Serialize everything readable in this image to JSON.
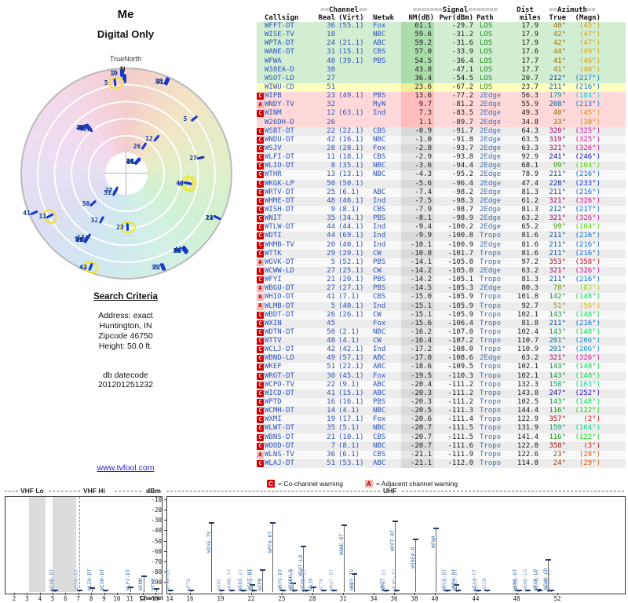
{
  "header": {
    "title": "Me",
    "subtitle": "Digital Only",
    "compass": "TrueNorth",
    "north": "N"
  },
  "search": {
    "heading": "Search Criteria",
    "lines": [
      "Address: exact",
      "Huntington, IN",
      "Zipcode 46750",
      "Height: 50.0 ft."
    ],
    "datecode_label": "db datecode",
    "datecode": "201201251232",
    "link": "www.tvfool.com"
  },
  "table": {
    "groups": {
      "channel_deco": "==",
      "channel": "Channel",
      "signal_deco": "=======",
      "signal": "Signal",
      "dist": "Dist",
      "azimuth_deco": "==",
      "azimuth": "Azimuth"
    },
    "cols": {
      "callsign": "Callsign",
      "real": "Real",
      "virt": "(Virt)",
      "netwk": "Netwk",
      "nm": "NM(dB)",
      "pwr": "Pwr(dBm)",
      "path": "Path",
      "miles": "miles",
      "true": "True",
      "magn": "(Magn)"
    }
  },
  "legend": {
    "c": "C",
    "c_text": "= Co-channel warning",
    "a": "A",
    "a_text": "= Adjacent channel warning"
  },
  "bands": {
    "vhf_lo": "VHF Lo",
    "vhf_hi": "VHF Hi",
    "uhf": "UHF",
    "dbm": "dBm",
    "channel": "Channel"
  },
  "colors": {
    "callsign_blue": "#2a52be",
    "path_los": "#168a16",
    "path_other": "#3f6fb5",
    "warning_c": "#d40000",
    "warning_a": "#ffb0b0",
    "row_green": "#d2eed2",
    "row_yellow": "#ffffbf",
    "row_red": "#ffd9d9",
    "row_gray": "#ececec",
    "marker_blue": "#1838c8",
    "highlight_yellow": "#f2e32b"
  },
  "chart_data": {
    "type": "scatter",
    "title": "Me",
    "subtitle": "Digital Only",
    "polar": {
      "radial_unit": "miles",
      "radial_max": 110,
      "angle_unit": "degrees_true"
    },
    "stem": {
      "xlabel": "Channel",
      "ylabel": "dBm",
      "ylim": [
        -113,
        -5
      ],
      "yticks": [
        -10,
        -20,
        -30,
        -40,
        -50,
        -60,
        -70,
        -80,
        -90
      ],
      "vhf_ticks": [
        2,
        3,
        4,
        5,
        6,
        7,
        8,
        9,
        10,
        11,
        12,
        13
      ],
      "uhf_ticks": [
        14,
        16,
        19,
        22,
        25,
        28,
        31,
        34,
        36,
        38,
        40,
        44,
        48,
        52
      ]
    },
    "stations": [
      {
        "cs": "WFFT-DT",
        "re": 36,
        "vi": "(55.1)",
        "nw": "Fox",
        "nm": 61.1,
        "pw": -29.7,
        "pa": "LOS",
        "mi": 17.9,
        "az": 40,
        "mg": 45,
        "w": "",
        "t": "g",
        "h": 0
      },
      {
        "cs": "WISE-TV",
        "re": 18,
        "vi": "",
        "nw": "NBC",
        "nm": 59.6,
        "pw": -31.2,
        "pa": "LOS",
        "mi": 17.9,
        "az": 42,
        "mg": 47,
        "w": "",
        "t": "g",
        "h": 0
      },
      {
        "cs": "WPTA-DT",
        "re": 24,
        "vi": "(21.1)",
        "nw": "ABC",
        "nm": 59.2,
        "pw": -31.6,
        "pa": "LOS",
        "mi": 17.9,
        "az": 42,
        "mg": 47,
        "w": "",
        "t": "g",
        "h": 0
      },
      {
        "cs": "WANE-DT",
        "re": 31,
        "vi": "(15.1)",
        "nw": "CBS",
        "nm": 57.0,
        "pw": -33.9,
        "pa": "LOS",
        "mi": 17.6,
        "az": 44,
        "mg": 49,
        "w": "",
        "t": "g",
        "h": 0
      },
      {
        "cs": "WFWA",
        "re": 40,
        "vi": "(39.1)",
        "nw": "PBS",
        "nm": 54.5,
        "pw": -36.4,
        "pa": "LOS",
        "mi": 17.7,
        "az": 41,
        "mg": 46,
        "w": "",
        "t": "g",
        "h": 0
      },
      {
        "cs": "W38EA-D",
        "re": 38,
        "vi": "",
        "nw": "",
        "nm": 43.8,
        "pw": -47.1,
        "pa": "LOS",
        "mi": 17.7,
        "az": 41,
        "mg": 46,
        "w": "",
        "t": "g",
        "h": 0
      },
      {
        "cs": "WSOT-LD",
        "re": 27,
        "vi": "",
        "nw": "",
        "nm": 36.4,
        "pw": -54.5,
        "pa": "LOS",
        "mi": 20.7,
        "az": 212,
        "mg": 217,
        "w": "",
        "t": "g",
        "h": 0
      },
      {
        "cs": "WIWU-CD",
        "re": 51,
        "vi": "",
        "nw": "",
        "nm": 23.6,
        "pw": -67.2,
        "pa": "LOS",
        "mi": 23.7,
        "az": 211,
        "mg": 216,
        "w": "",
        "t": "y",
        "h": 0
      },
      {
        "cs": "WIPB",
        "re": 23,
        "vi": "(49.1)",
        "nw": "PBS",
        "nm": 13.6,
        "pw": -77.2,
        "pa": "2Edge",
        "mi": 56.3,
        "az": 179,
        "mg": 184,
        "w": "C",
        "t": "r",
        "h": 1
      },
      {
        "cs": "WNDY-TV",
        "re": 32,
        "vi": "",
        "nw": "MyN",
        "nm": 9.7,
        "pw": -81.2,
        "pa": "2Edge",
        "mi": 55.9,
        "az": 208,
        "mg": 213,
        "w": "A",
        "t": "r",
        "h": 0
      },
      {
        "cs": "WINM",
        "re": 12,
        "vi": "(63.1)",
        "nw": "Ind",
        "nm": 7.3,
        "pw": -83.5,
        "pa": "2Edge",
        "mi": 49.3,
        "az": 40,
        "mg": 45,
        "w": "C",
        "t": "r",
        "h": 0
      },
      {
        "cs": "W26DH-D",
        "re": 26,
        "vi": "",
        "nw": "",
        "nm": 1.1,
        "pw": -89.7,
        "pa": "2Edge",
        "mi": 34.8,
        "az": 33,
        "mg": 38,
        "w": "",
        "t": "r",
        "h": 0
      },
      {
        "cs": "WSBT-DT",
        "re": 22,
        "vi": "(22.1)",
        "nw": "CBS",
        "nm": -0.9,
        "pw": -91.7,
        "pa": "2Edge",
        "mi": 64.3,
        "az": 320,
        "mg": 325,
        "w": "C",
        "t": "x",
        "h": 0
      },
      {
        "cs": "WNDU-DT",
        "re": 42,
        "vi": "(16.1)",
        "nw": "NBC",
        "nm": -1.0,
        "pw": -91.8,
        "pa": "2Edge",
        "mi": 63.5,
        "az": 319,
        "mg": 325,
        "w": "C",
        "t": "x",
        "h": 0
      },
      {
        "cs": "WSJV",
        "re": 28,
        "vi": "(28.1)",
        "nw": "Fox",
        "nm": -2.8,
        "pw": -93.7,
        "pa": "2Edge",
        "mi": 63.3,
        "az": 321,
        "mg": 326,
        "w": "C",
        "t": "x",
        "h": 0
      },
      {
        "cs": "WLFI-DT",
        "re": 11,
        "vi": "(18.1)",
        "nw": "CBS",
        "nm": -2.9,
        "pw": -93.8,
        "pa": "2Edge",
        "mi": 92.9,
        "az": 241,
        "mg": 246,
        "w": "C",
        "t": "x",
        "h": 1
      },
      {
        "cs": "WLIO-DT",
        "re": 8,
        "vi": "(35.1)",
        "nw": "NBC",
        "nm": -3.6,
        "pw": -94.4,
        "pa": "2Edge",
        "mi": 68.1,
        "az": 99,
        "mg": 104,
        "w": "C",
        "t": "x",
        "h": 1
      },
      {
        "cs": "WTHR",
        "re": 13,
        "vi": "(13.1)",
        "nw": "NBC",
        "nm": -4.3,
        "pw": -95.2,
        "pa": "2Edge",
        "mi": 78.9,
        "az": 211,
        "mg": 216,
        "w": "C",
        "t": "x",
        "h": 0
      },
      {
        "cs": "WKGK-LP",
        "re": 50,
        "vi": "(50.1)",
        "nw": "",
        "nm": -5.6,
        "pw": -96.4,
        "pa": "2Edge",
        "mi": 47.4,
        "az": 228,
        "mg": 233,
        "w": "C",
        "t": "x",
        "h": 0
      },
      {
        "cs": "WRTV-DT",
        "re": 25,
        "vi": "(6.1)",
        "nw": "ABC",
        "nm": -7.4,
        "pw": -98.2,
        "pa": "2Edge",
        "mi": 81.3,
        "az": 211,
        "mg": 216,
        "w": "C",
        "t": "x",
        "h": 0
      },
      {
        "cs": "WHME-DT",
        "re": 48,
        "vi": "(46.1)",
        "nw": "Ind",
        "nm": -7.5,
        "pw": -98.3,
        "pa": "2Edge",
        "mi": 61.2,
        "az": 321,
        "mg": 326,
        "w": "C",
        "t": "x",
        "h": 0
      },
      {
        "cs": "WISH-DT",
        "re": 9,
        "vi": "(8.1)",
        "nw": "CBS",
        "nm": -7.9,
        "pw": -98.7,
        "pa": "2Edge",
        "mi": 81.3,
        "az": 212,
        "mg": 217,
        "w": "C",
        "t": "x",
        "h": 0
      },
      {
        "cs": "WNIT",
        "re": 35,
        "vi": "(34.1)",
        "nw": "PBS",
        "nm": -8.1,
        "pw": -98.9,
        "pa": "2Edge",
        "mi": 63.2,
        "az": 321,
        "mg": 326,
        "w": "C",
        "t": "x",
        "h": 0
      },
      {
        "cs": "WTLW-DT",
        "re": 44,
        "vi": "(44.1)",
        "nw": "Ind",
        "nm": -9.4,
        "pw": -100.2,
        "pa": "2Edge",
        "mi": 65.2,
        "az": 99,
        "mg": 104,
        "w": "C",
        "t": "x",
        "h": 1
      },
      {
        "cs": "WDTI",
        "re": 44,
        "vi": "(69.1)",
        "nw": "Ind",
        "nm": -9.9,
        "pw": -100.8,
        "pa": "Tropo",
        "mi": 81.6,
        "az": 211,
        "mg": 216,
        "w": "C",
        "t": "x",
        "h": 0
      },
      {
        "cs": "WHMB-TV",
        "re": 20,
        "vi": "(40.1)",
        "nw": "Ind",
        "nm": -10.1,
        "pw": -100.9,
        "pa": "2Edge",
        "mi": 81.6,
        "az": 211,
        "mg": 216,
        "w": "C",
        "t": "x",
        "h": 0
      },
      {
        "cs": "WTTK",
        "re": 29,
        "vi": "(29.1)",
        "nw": "CW",
        "nm": -10.8,
        "pw": -101.7,
        "pa": "Tropo",
        "mi": 81.6,
        "az": 211,
        "mg": 216,
        "w": "C",
        "t": "x",
        "h": 0
      },
      {
        "cs": "WGVK-DT",
        "re": 5,
        "vi": "(52.1)",
        "nw": "PBS",
        "nm": -14.1,
        "pw": -105.0,
        "pa": "Tropo",
        "mi": 97.2,
        "az": 353,
        "mg": 358,
        "w": "A",
        "t": "x",
        "h": 1
      },
      {
        "cs": "WCWW-LD",
        "re": 27,
        "vi": "(25.1)",
        "nw": "CW",
        "nm": -14.2,
        "pw": -105.0,
        "pa": "2Edge",
        "mi": 63.2,
        "az": 321,
        "mg": 326,
        "w": "C",
        "t": "x",
        "h": 0
      },
      {
        "cs": "WFYI",
        "re": 21,
        "vi": "(20.1)",
        "nw": "PBS",
        "nm": -14.2,
        "pw": -105.1,
        "pa": "Tropo",
        "mi": 81.3,
        "az": 211,
        "mg": 216,
        "w": "C",
        "t": "x",
        "h": 0
      },
      {
        "cs": "WBGU-DT",
        "re": 27,
        "vi": "(27.1)",
        "nw": "PBS",
        "nm": -14.5,
        "pw": -105.3,
        "pa": "2Edge",
        "mi": 80.3,
        "az": 78,
        "mg": 83,
        "w": "A",
        "t": "x",
        "h": 0
      },
      {
        "cs": "WHIO-DT",
        "re": 41,
        "vi": "(7.1)",
        "nw": "CBS",
        "nm": -15.0,
        "pw": -105.9,
        "pa": "Tropo",
        "mi": 101.8,
        "az": 142,
        "mg": 148,
        "w": "A",
        "t": "x",
        "h": 0
      },
      {
        "cs": "WLMB-DT",
        "re": 5,
        "vi": "(40.1)",
        "nw": "Ind",
        "nm": -15.1,
        "pw": -105.9,
        "pa": "Tropo",
        "mi": 92.7,
        "az": 51,
        "mg": 56,
        "w": "A",
        "t": "x",
        "h": 0
      },
      {
        "cs": "WBDT-DT",
        "re": 26,
        "vi": "(26.1)",
        "nw": "CW",
        "nm": -15.1,
        "pw": -105.9,
        "pa": "Tropo",
        "mi": 102.1,
        "az": 143,
        "mg": 148,
        "w": "C",
        "t": "x",
        "h": 0
      },
      {
        "cs": "WXIN",
        "re": 45,
        "vi": "",
        "nw": "Fox",
        "nm": -15.6,
        "pw": -106.4,
        "pa": "Tropo",
        "mi": 81.8,
        "az": 211,
        "mg": 216,
        "w": "C",
        "t": "x",
        "h": 0
      },
      {
        "cs": "WDTN-DT",
        "re": 50,
        "vi": "(2.1)",
        "nw": "NBC",
        "nm": -16.2,
        "pw": -107.0,
        "pa": "Tropo",
        "mi": 102.4,
        "az": 143,
        "mg": 148,
        "w": "C",
        "t": "x",
        "h": 0
      },
      {
        "cs": "WTTV",
        "re": 48,
        "vi": "(4.1)",
        "nw": "CW",
        "nm": -16.4,
        "pw": -107.2,
        "pa": "Tropo",
        "mi": 110.7,
        "az": 201,
        "mg": 206,
        "w": "C",
        "t": "x",
        "h": 1
      },
      {
        "cs": "WCLJ-DT",
        "re": 42,
        "vi": "(42.1)",
        "nw": "Ind",
        "nm": -17.2,
        "pw": -108.0,
        "pa": "Tropo",
        "mi": 110.9,
        "az": 201,
        "mg": 206,
        "w": "C",
        "t": "x",
        "h": 1
      },
      {
        "cs": "WBND-LD",
        "re": 49,
        "vi": "(57.1)",
        "nw": "ABC",
        "nm": -17.8,
        "pw": -108.6,
        "pa": "2Edge",
        "mi": 63.2,
        "az": 321,
        "mg": 326,
        "w": "C",
        "t": "x",
        "h": 0
      },
      {
        "cs": "WKEF",
        "re": 51,
        "vi": "(22.1)",
        "nw": "ABC",
        "nm": -18.6,
        "pw": -109.5,
        "pa": "Tropo",
        "mi": 102.1,
        "az": 143,
        "mg": 148,
        "w": "C",
        "t": "x",
        "h": 0
      },
      {
        "cs": "WRGT-DT",
        "re": 30,
        "vi": "(45.1)",
        "nw": "Fox",
        "nm": -19.5,
        "pw": -110.3,
        "pa": "Tropo",
        "mi": 102.1,
        "az": 143,
        "mg": 148,
        "w": "C",
        "t": "x",
        "h": 0
      },
      {
        "cs": "WCPO-TV",
        "re": 22,
        "vi": "(9.1)",
        "nw": "ABC",
        "nm": -20.4,
        "pw": -111.2,
        "pa": "Tropo",
        "mi": 132.3,
        "az": 158,
        "mg": 163,
        "w": "C",
        "t": "x",
        "h": 0
      },
      {
        "cs": "WICD-DT",
        "re": 41,
        "vi": "(15.1)",
        "nw": "ABC",
        "nm": -20.3,
        "pw": -111.2,
        "pa": "Tropo",
        "mi": 143.8,
        "az": 247,
        "mg": 252,
        "w": "C",
        "t": "x",
        "h": 0
      },
      {
        "cs": "WPTD",
        "re": 16,
        "vi": "(16.1)",
        "nw": "PBS",
        "nm": -20.3,
        "pw": -111.2,
        "pa": "Tropo",
        "mi": 102.5,
        "az": 143,
        "mg": 148,
        "w": "C",
        "t": "x",
        "h": 0
      },
      {
        "cs": "WCMH-DT",
        "re": 14,
        "vi": "(4.1)",
        "nw": "NBC",
        "nm": -20.5,
        "pw": -111.3,
        "pa": "Tropo",
        "mi": 144.4,
        "az": 116,
        "mg": 122,
        "w": "C",
        "t": "x",
        "h": 0
      },
      {
        "cs": "WXMI",
        "re": 19,
        "vi": "(17.1)",
        "nw": "Fox",
        "nm": -20.6,
        "pw": -111.4,
        "pa": "Tropo",
        "mi": 122.9,
        "az": 357,
        "mg": 2,
        "w": "C",
        "t": "x",
        "h": 0
      },
      {
        "cs": "WLWT-DT",
        "re": 35,
        "vi": "(5.1)",
        "nw": "NBC",
        "nm": -20.7,
        "pw": -111.5,
        "pa": "Tropo",
        "mi": 131.9,
        "az": 159,
        "mg": 164,
        "w": "C",
        "t": "x",
        "h": 0
      },
      {
        "cs": "WBNS-DT",
        "re": 21,
        "vi": "(10.1)",
        "nw": "CBS",
        "nm": -20.7,
        "pw": -111.5,
        "pa": "Tropo",
        "mi": 141.4,
        "az": 116,
        "mg": 122,
        "w": "C",
        "t": "x",
        "h": 0
      },
      {
        "cs": "WOOD-DT",
        "re": 7,
        "vi": "(8.1)",
        "nw": "NBC",
        "nm": -20.7,
        "pw": -111.6,
        "pa": "Tropo",
        "mi": 122.8,
        "az": 358,
        "mg": 3,
        "w": "C",
        "t": "x",
        "h": 0
      },
      {
        "cs": "WLNS-TV",
        "re": 36,
        "vi": "(6.1)",
        "nw": "CBS",
        "nm": -21.1,
        "pw": -111.9,
        "pa": "Tropo",
        "mi": 122.6,
        "az": 23,
        "mg": 28,
        "w": "A",
        "t": "x",
        "h": 0
      },
      {
        "cs": "WLAJ-DT",
        "re": 51,
        "vi": "(53.1)",
        "nw": "ABC",
        "nm": -21.1,
        "pw": -112.0,
        "pa": "Tropo",
        "mi": 114.0,
        "az": 24,
        "mg": 29,
        "w": "C",
        "t": "x",
        "h": 0
      }
    ]
  }
}
